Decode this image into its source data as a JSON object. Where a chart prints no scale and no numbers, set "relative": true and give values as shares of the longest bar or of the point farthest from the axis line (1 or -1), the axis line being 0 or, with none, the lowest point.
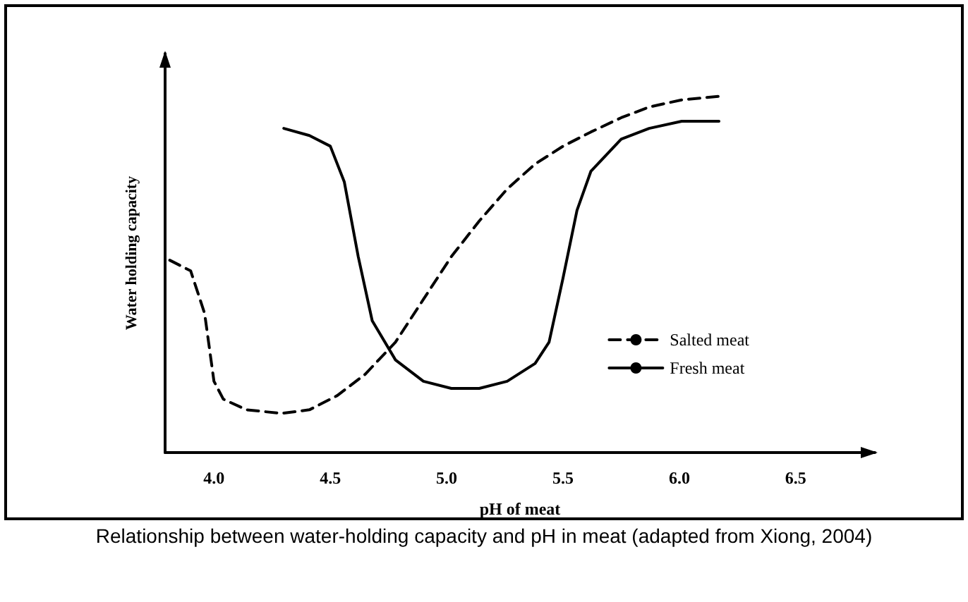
{
  "chart_data": {
    "type": "line",
    "relative": true,
    "xlabel": "pH of meat",
    "ylabel": "Water holding capacity",
    "annotations": [
      "Relationship between water-holding capacity and pH in meat (adapted from Xiong, 2004)"
    ],
    "xlim": [
      3.79,
      6.84
    ],
    "xticks": [
      {
        "value": 4,
        "label": "4.0"
      },
      {
        "value": 4.5,
        "label": "4.5"
      },
      {
        "value": 5,
        "label": "5.0"
      },
      {
        "value": 5.5,
        "label": "5.5"
      },
      {
        "value": 6,
        "label": "6.0"
      },
      {
        "value": 6.5,
        "label": "6.5"
      }
    ],
    "grid": false,
    "legend": "bottom right",
    "marker": "none",
    "series": [
      {
        "name": "Salted meat",
        "color": "#000000",
        "line_style": "dashed",
        "x": [
          3.81,
          3.9,
          3.96,
          4.0,
          4.04,
          4.14,
          4.29,
          4.41,
          4.53,
          4.65,
          4.78,
          4.9,
          5.02,
          5.14,
          5.26,
          5.38,
          5.5,
          5.62,
          5.75,
          5.87,
          6.01,
          6.17
        ],
        "values": [
          0.54,
          0.51,
          0.39,
          0.2,
          0.15,
          0.12,
          0.11,
          0.12,
          0.16,
          0.22,
          0.31,
          0.43,
          0.55,
          0.65,
          0.74,
          0.81,
          0.86,
          0.9,
          0.94,
          0.97,
          0.99,
          1
        ]
      },
      {
        "name": "Fresh meat",
        "color": "#000000",
        "line_style": "solid",
        "x": [
          4.3,
          4.41,
          4.5,
          4.56,
          4.62,
          4.68,
          4.78,
          4.9,
          5.02,
          5.14,
          5.26,
          5.38,
          5.44,
          5.5,
          5.56,
          5.62,
          5.75,
          5.87,
          6.01,
          6.17
        ],
        "values": [
          0.91,
          0.89,
          0.86,
          0.76,
          0.55,
          0.37,
          0.26,
          0.2,
          0.18,
          0.18,
          0.2,
          0.25,
          0.31,
          0.49,
          0.68,
          0.79,
          0.88,
          0.91,
          0.93,
          0.93
        ]
      }
    ]
  }
}
